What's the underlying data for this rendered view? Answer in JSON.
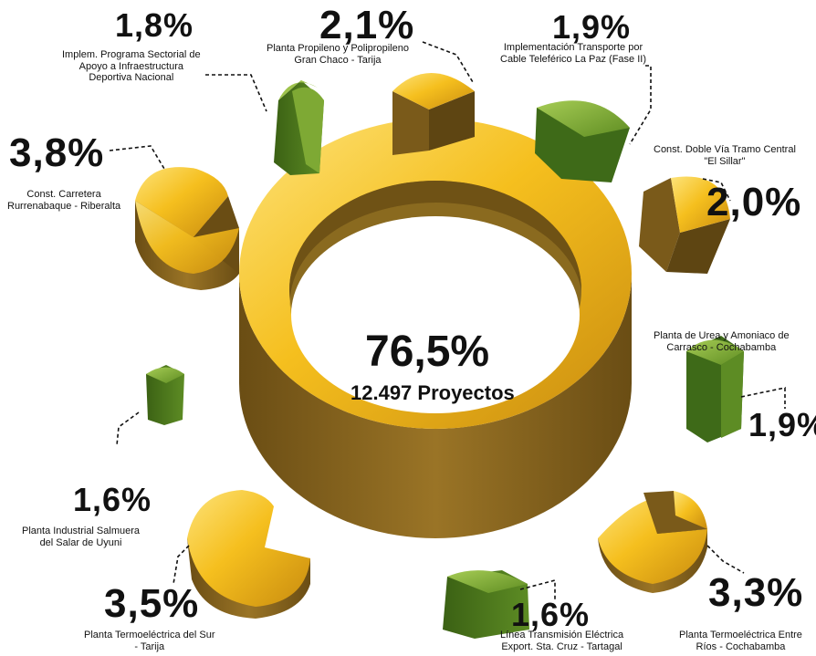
{
  "chart_data": {
    "type": "pie",
    "center": {
      "value": "76,5%",
      "subtitle": "12.497 Proyectos"
    },
    "slices": [
      {
        "value": "1,8%",
        "label": [
          "Implem. Programa Sectorial de",
          "Apoyo a Infraestructura",
          "Deportiva Nacional"
        ],
        "color": "#7ea934"
      },
      {
        "value": "2,1%",
        "label": [
          "Planta Propileno y Polipropileno",
          "Gran Chaco - Tarija"
        ],
        "color": "#e9ad1c"
      },
      {
        "value": "1,9%",
        "label": [
          "Implementación Transporte por",
          "Cable Teleférico La Paz (Fase II)"
        ],
        "color": "#7ea934"
      },
      {
        "value": "2,0%",
        "label": [
          "Const. Doble Vía Tramo Central",
          "\"El Sillar\""
        ],
        "color": "#e9ad1c"
      },
      {
        "value": "1,9%",
        "label": [
          "Planta de Urea y Amoniaco de",
          "Carrasco - Cochabamba"
        ],
        "color": "#7ea934"
      },
      {
        "value": "3,3%",
        "label": [
          "Planta Termoeléctrica Entre",
          "Ríos - Cochabamba"
        ],
        "color": "#e9ad1c"
      },
      {
        "value": "1,6%",
        "label": [
          "Línea Transmisión Eléctrica",
          "Export. Sta. Cruz - Tartagal"
        ],
        "color": "#7ea934"
      },
      {
        "value": "3,5%",
        "label": [
          "Planta Termoeléctrica del Sur",
          "- Tarija"
        ],
        "color": "#e9ad1c"
      },
      {
        "value": "1,6%",
        "label": [
          "Planta Industrial Salmuera",
          "del Salar de Uyuni"
        ],
        "color": "#7ea934"
      },
      {
        "value": "3,8%",
        "label": [
          "Const. Carretera",
          "Rurrenabaque - Riberalta"
        ],
        "color": "#e9ad1c"
      }
    ]
  },
  "colors": {
    "gold_top": "#f6c21f",
    "gold_side": "#8a6a1f",
    "gold_dark": "#5e4512",
    "green_top": "#8bb43a",
    "green_side": "#4d7a1c",
    "green_dark": "#365a12"
  }
}
